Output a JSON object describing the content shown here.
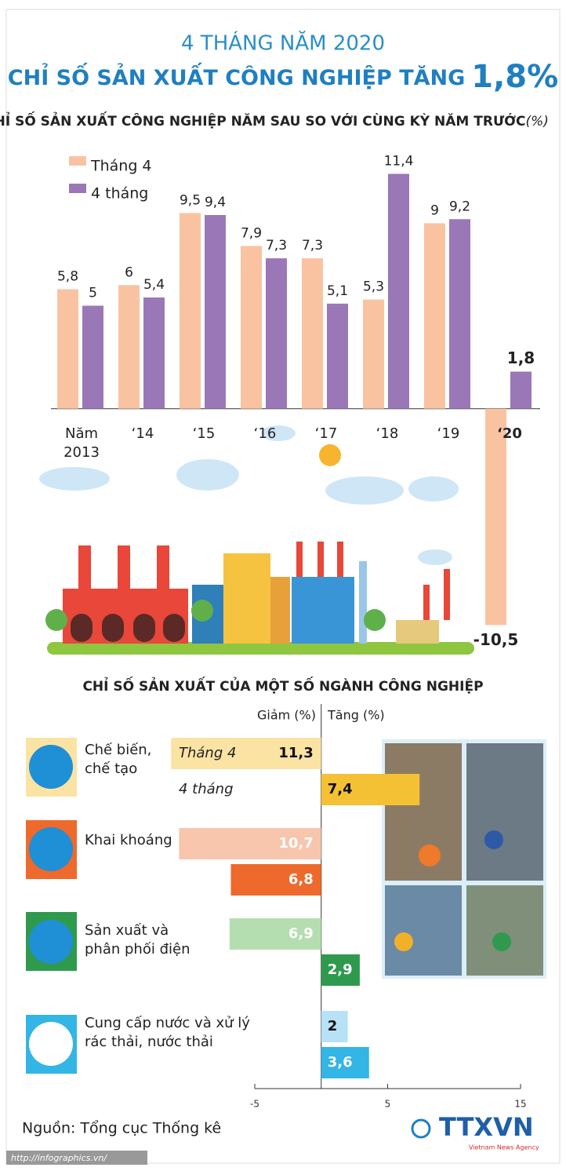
{
  "header": {
    "subtitle": "4 THÁNG NĂM 2020",
    "title": "CHỈ SỐ SẢN XUẤT CÔNG NGHIỆP TĂNG",
    "highlight": "1,8%"
  },
  "chart_data": [
    {
      "type": "bar",
      "title": "CHỈ SỐ SẢN XUẤT CÔNG NGHIỆP NĂM SAU SO VỚI CÙNG KỲ NĂM TRƯỚC",
      "unit": "(%)",
      "categories": [
        "Năm 2013",
        "‘14",
        "‘15",
        "‘16",
        "‘17",
        "‘18",
        "‘19",
        "‘20"
      ],
      "series": [
        {
          "name": "Tháng 4",
          "color": "#f9c3a2",
          "values": [
            5.8,
            6,
            9.5,
            7.9,
            7.3,
            5.3,
            9,
            -10.5
          ],
          "value_labels": [
            "5,8",
            "6",
            "9,5",
            "7,9",
            "7,3",
            "5,3",
            "9",
            "-10,5"
          ]
        },
        {
          "name": "4 tháng",
          "color": "#9a78b8",
          "values": [
            5,
            5.4,
            9.4,
            7.3,
            5.1,
            11.4,
            9.2,
            1.8
          ],
          "value_labels": [
            "5",
            "5,4",
            "9,4",
            "7,3",
            "5,1",
            "11,4",
            "9,2",
            "1,8"
          ]
        }
      ],
      "ylim": [
        -11.4,
        12.6
      ]
    },
    {
      "type": "hbar",
      "title": "CHỈ SỐ SẢN XUẤT CỦA MỘT SỐ NGÀNH CÔNG NGHIỆP",
      "x_label_left": "Giảm (%)",
      "x_label_right": "Tăng (%)",
      "categories": [
        "Chế biến, chế tạo",
        "Khai khoáng",
        "Sản xuất và phân phối điện",
        "Cung cấp nước và xử lý rác thải, nước thải"
      ],
      "series": [
        {
          "name": "Tháng 4",
          "colors": [
            "#fbe3a4",
            "#f8c6ad",
            "#b5deb0",
            "#b7e1f4"
          ],
          "values": [
            -11.3,
            -10.7,
            -6.9,
            2
          ],
          "value_labels": [
            "11,3",
            "10,7",
            "6,9",
            "2"
          ]
        },
        {
          "name": "4 tháng",
          "colors": [
            "#f4c034",
            "#ed6a2c",
            "#2f9a4d",
            "#33b5e5"
          ],
          "values": [
            7.4,
            -6.8,
            2.9,
            3.6
          ],
          "value_labels": [
            "7,4",
            "6,8",
            "2,9",
            "3,6"
          ]
        }
      ],
      "xlim": [
        -5,
        15
      ],
      "xticks": [
        -5,
        5,
        15
      ]
    }
  ],
  "footer": {
    "source": "Nguồn: Tổng cục Thống kê",
    "url": "http://infographics.vn/",
    "logo": "TTXVN",
    "agency": "Vietnam News Agency"
  }
}
